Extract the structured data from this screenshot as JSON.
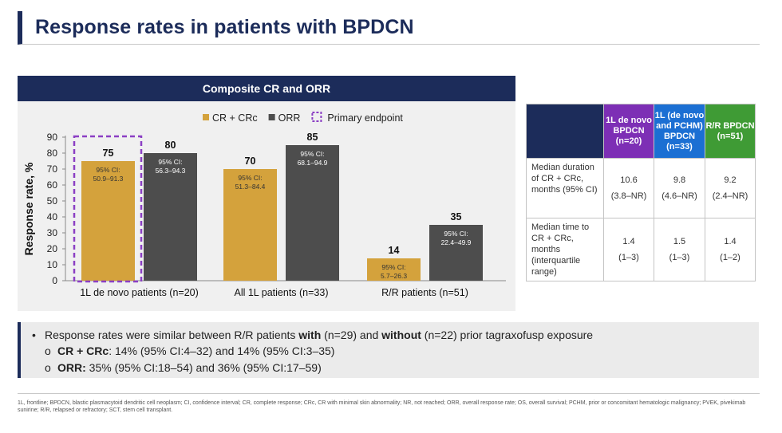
{
  "title": "Response rates in patients with BPDCN",
  "chart_header": "Composite CR and ORR",
  "chart_data": {
    "type": "bar",
    "title": "Composite CR and ORR",
    "ylabel": "Response rate, %",
    "xlabel": "",
    "ylim": [
      0,
      90
    ],
    "yticks": [
      0,
      10,
      20,
      30,
      40,
      50,
      60,
      70,
      80,
      90
    ],
    "ytick_labels": [
      "0",
      "10",
      "20",
      "30",
      "40",
      "50",
      "60",
      "70",
      "80",
      "90"
    ],
    "categories": [
      "1L de novo patients (n=20)",
      "All 1L patients (n=33)",
      "R/R patients (n=51)"
    ],
    "series": [
      {
        "name": "CR + CRc",
        "color": "#d4a23c",
        "values": [
          75,
          70,
          14
        ],
        "value_labels": [
          "75",
          "70",
          "14"
        ],
        "ci_labels": [
          [
            "95% CI:",
            "50.9–91.3"
          ],
          [
            "95% CI:",
            "51.3–84.4"
          ],
          [
            "95% CI:",
            "5.7–26.3"
          ]
        ]
      },
      {
        "name": "ORR",
        "color": "#4d4d4d",
        "values": [
          80,
          85,
          35
        ],
        "value_labels": [
          "80",
          "85",
          "35"
        ],
        "ci_labels": [
          [
            "95% CI:",
            "56.3–94.3"
          ],
          [
            "95% CI:",
            "68.1–94.9"
          ],
          [
            "95% CI:",
            "22.4–49.9"
          ]
        ]
      }
    ],
    "legend": [
      {
        "label": "CR + CRc",
        "kind": "swatch",
        "color": "#d4a23c"
      },
      {
        "label": "ORR",
        "kind": "swatch",
        "color": "#4d4d4d"
      },
      {
        "label": "Primary  endpoint",
        "kind": "dashed",
        "color": "#8b3fc4"
      }
    ],
    "primary_endpoint_category": 0,
    "legend_position": "top"
  },
  "table": {
    "headers": [
      "1L de novo BPDCN (n=20)",
      "1L (de novo and PCHM) BPDCN (n=33)",
      "R/R BPDCN (n=51)"
    ],
    "header_colors": [
      "#7d2fb5",
      "#1b6fd3",
      "#3f9b35"
    ],
    "rows": [
      {
        "label": "Median duration of CR + CRc, months (95% CI)",
        "values": [
          "10.6",
          "9.8",
          "9.2"
        ],
        "sub": [
          "(3.8–NR)",
          "(4.6–NR)",
          "(2.4–NR)"
        ]
      },
      {
        "label": "Median time to CR + CRc, months (interquartile range)",
        "values": [
          "1.4",
          "1.5",
          "1.4"
        ],
        "sub": [
          "(1–3)",
          "(1–3)",
          "(1–2)"
        ]
      }
    ]
  },
  "bullets": {
    "main": {
      "marker": "•",
      "t1": "Response rates were similar between R/R patients ",
      "b1": "with",
      "t2": " (n=29) and ",
      "b2": "without",
      "t3": " (n=22) prior tagraxofusp exposure"
    },
    "sub": [
      {
        "marker": "o",
        "bold": "CR + CRc",
        "text": ": 14% (95% CI:4–32) and 14% (95% CI:3–35)"
      },
      {
        "marker": "o",
        "bold": "ORR:",
        "text": " 35% (95% CI:18–54) and 36% (95% CI:17–59)"
      }
    ]
  },
  "footnote": "1L, frontline; BPDCN, blastic plasmacytoid dendritic cell neoplasm; CI, confidence interval; CR, complete response; CRc, CR with minimal skin abnormality; NR, not reached; ORR, overall response rate; OS, overall survival; PCHM, prior or concomitant hematologic malignancy; PVEK, pivekimab sunirine; R/R, relapsed or refractory; SCT, stem cell transplant."
}
